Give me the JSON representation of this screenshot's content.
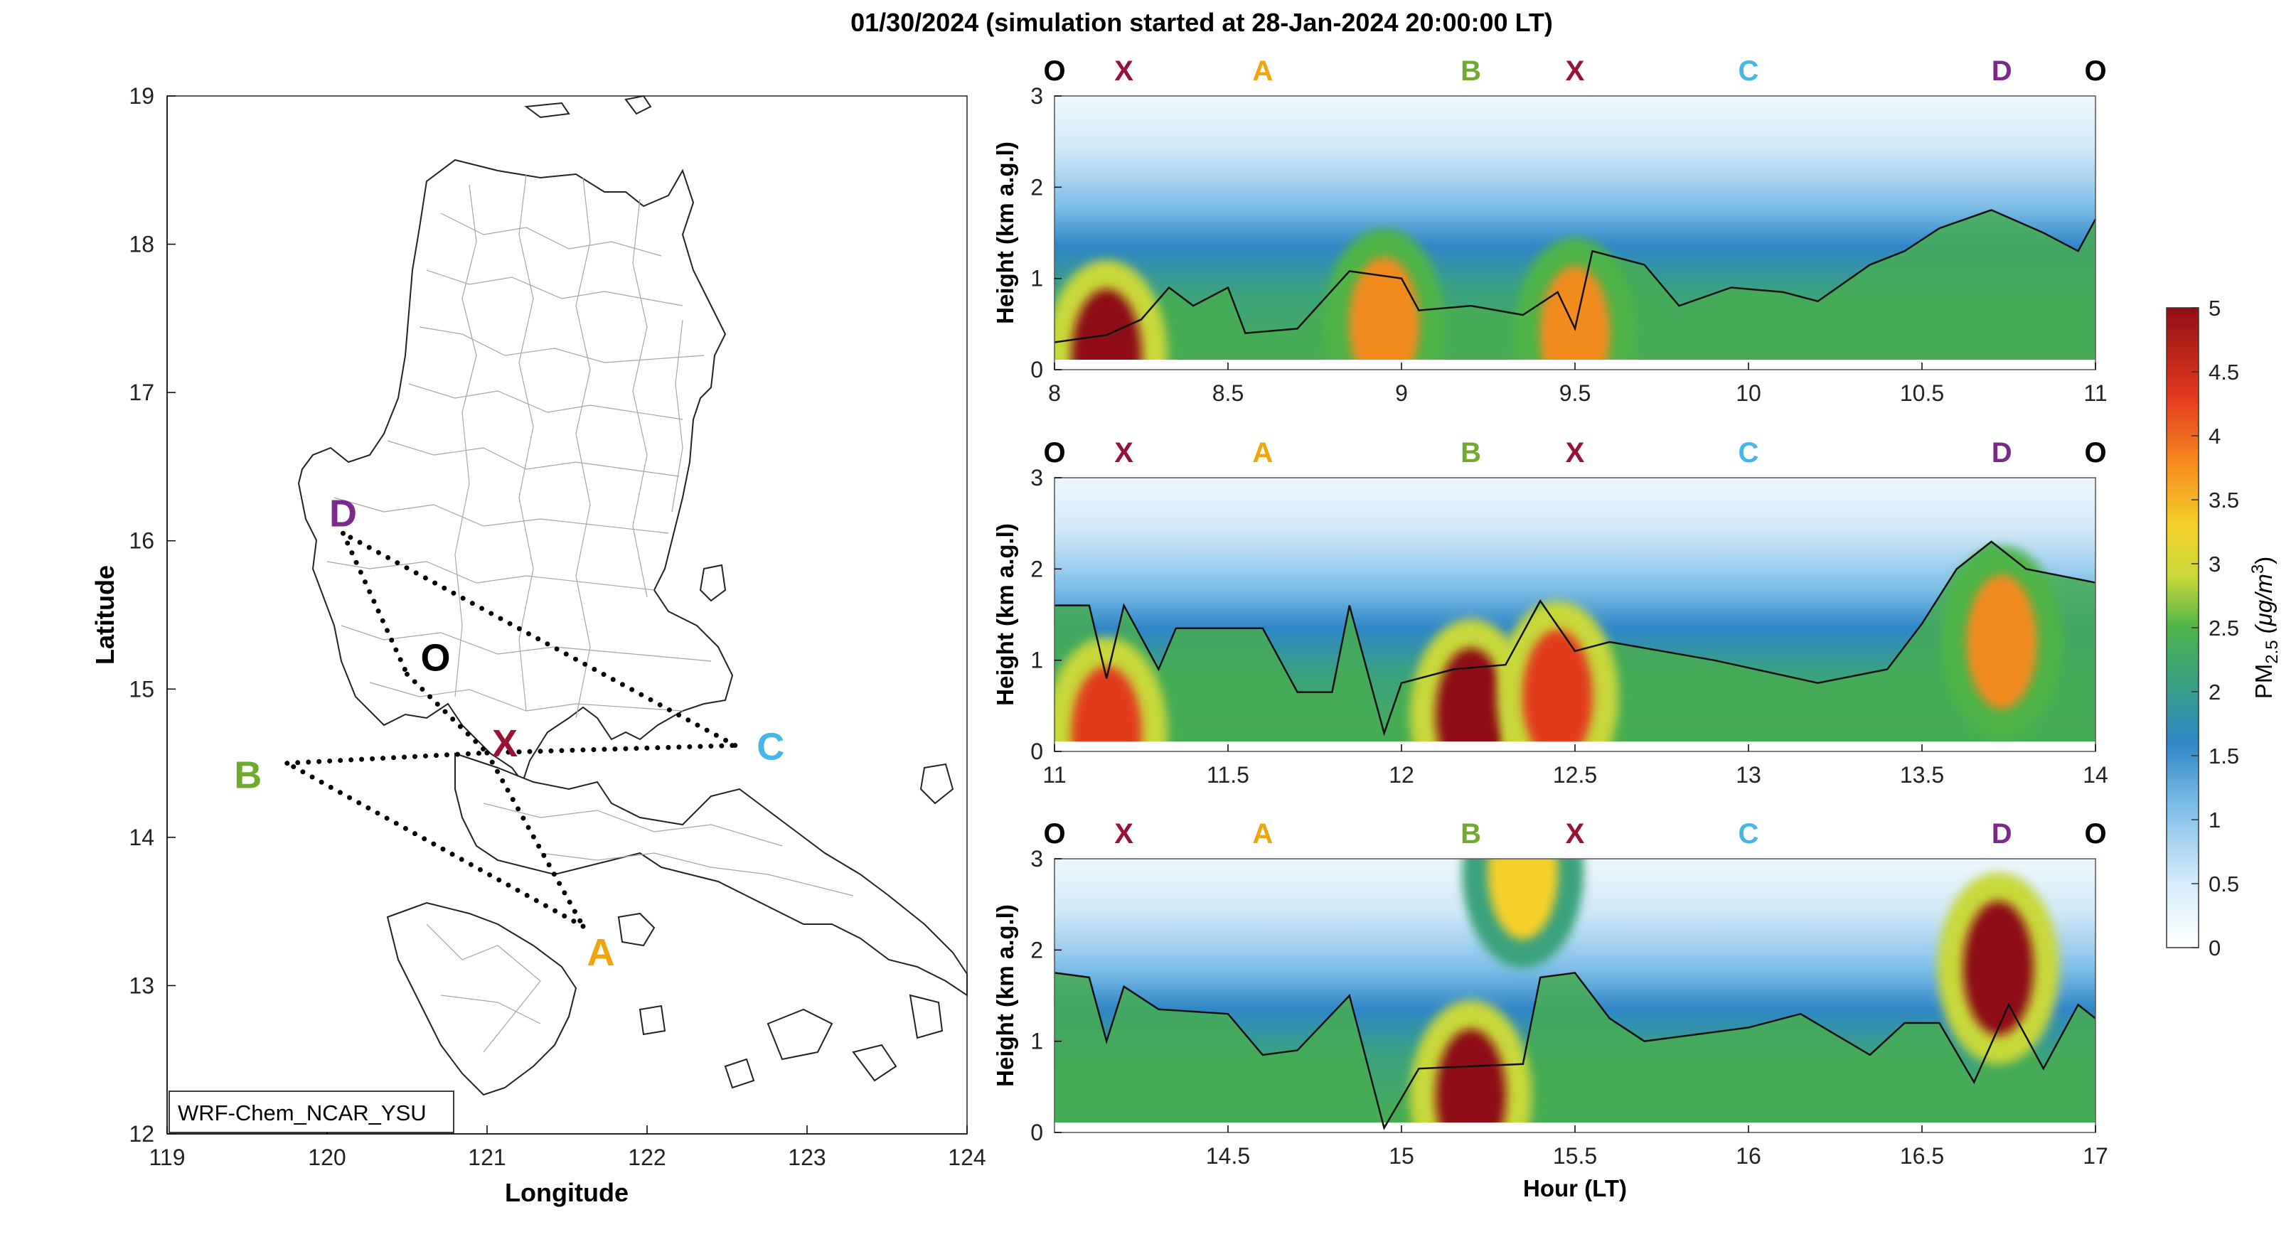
{
  "figure": {
    "title": "01/30/2024 (simulation started at 28-Jan-2024 20:00:00 LT)"
  },
  "chart_data": [
    {
      "type": "map",
      "xlabel": "Longitude",
      "ylabel": "Latitude",
      "xlim": [
        119,
        124
      ],
      "ylim": [
        12,
        19
      ],
      "xticks": [
        "119",
        "120",
        "121",
        "122",
        "123",
        "124"
      ],
      "yticks": [
        "12",
        "13",
        "14",
        "15",
        "16",
        "17",
        "18",
        "19"
      ],
      "model_label": "WRF-Chem_NCAR_YSU",
      "points": [
        {
          "label": "D",
          "lon": 120.1,
          "lat": 16.05,
          "color": "#7b2a8c"
        },
        {
          "label": "O",
          "lon": 120.5,
          "lat": 15.1,
          "color": "#000000"
        },
        {
          "label": "X",
          "lon": 121.0,
          "lat": 14.57,
          "color": "#9b1035"
        },
        {
          "label": "B",
          "lon": 119.75,
          "lat": 14.5,
          "color": "#6faa2f"
        },
        {
          "label": "C",
          "lon": 122.55,
          "lat": 14.62,
          "color": "#45b6e8"
        },
        {
          "label": "A",
          "lon": 121.6,
          "lat": 13.4,
          "color": "#f0a50a"
        }
      ],
      "flight_path": [
        [
          "D",
          "O"
        ],
        [
          "O",
          "X"
        ],
        [
          "X",
          "A"
        ],
        [
          "A",
          "B"
        ],
        [
          "B",
          "X"
        ],
        [
          "X",
          "C"
        ],
        [
          "C",
          "D"
        ]
      ]
    },
    {
      "type": "heatmap",
      "panel": "top",
      "ylabel": "Height (km a.g.l)",
      "xlim": [
        8,
        11
      ],
      "ylim": [
        0,
        3
      ],
      "xticks": [
        "8",
        "8.5",
        "9",
        "9.5",
        "10",
        "10.5",
        "11"
      ],
      "yticks": [
        "0",
        "1",
        "2",
        "3"
      ],
      "waypoints": [
        {
          "label": "O",
          "hour": 8.0
        },
        {
          "label": "X",
          "hour": 8.2
        },
        {
          "label": "A",
          "hour": 8.6
        },
        {
          "label": "B",
          "hour": 9.2
        },
        {
          "label": "X",
          "hour": 9.5
        },
        {
          "label": "C",
          "hour": 10.0
        },
        {
          "label": "D",
          "hour": 10.73
        },
        {
          "label": "O",
          "hour": 11.0
        }
      ],
      "pblh_km": [
        [
          8.0,
          0.3
        ],
        [
          8.15,
          0.38
        ],
        [
          8.25,
          0.55
        ],
        [
          8.33,
          0.9
        ],
        [
          8.4,
          0.7
        ],
        [
          8.5,
          0.9
        ],
        [
          8.55,
          0.4
        ],
        [
          8.7,
          0.45
        ],
        [
          8.85,
          1.08
        ],
        [
          9.0,
          1.0
        ],
        [
          9.05,
          0.65
        ],
        [
          9.2,
          0.7
        ],
        [
          9.35,
          0.6
        ],
        [
          9.45,
          0.85
        ],
        [
          9.5,
          0.45
        ],
        [
          9.55,
          1.3
        ],
        [
          9.7,
          1.15
        ],
        [
          9.8,
          0.7
        ],
        [
          9.95,
          0.9
        ],
        [
          10.1,
          0.85
        ],
        [
          10.2,
          0.75
        ],
        [
          10.35,
          1.15
        ],
        [
          10.45,
          1.3
        ],
        [
          10.55,
          1.55
        ],
        [
          10.7,
          1.75
        ],
        [
          10.85,
          1.5
        ],
        [
          10.95,
          1.3
        ],
        [
          11.0,
          1.65
        ]
      ],
      "pm25_hotspots": [
        {
          "hour": 8.15,
          "height_km": 0.15,
          "pm25": 5.0
        },
        {
          "hour": 8.95,
          "height_km": 0.5,
          "pm25": 4.2
        },
        {
          "hour": 9.5,
          "height_km": 0.4,
          "pm25": 4.0
        }
      ]
    },
    {
      "type": "heatmap",
      "panel": "middle",
      "ylabel": "Height (km a.g.l)",
      "xlim": [
        11,
        14
      ],
      "ylim": [
        0,
        3
      ],
      "xticks": [
        "11",
        "11.5",
        "12",
        "12.5",
        "13",
        "13.5",
        "14"
      ],
      "yticks": [
        "0",
        "1",
        "2",
        "3"
      ],
      "waypoints": [
        {
          "label": "O",
          "hour": 11.0
        },
        {
          "label": "X",
          "hour": 11.2
        },
        {
          "label": "A",
          "hour": 11.6
        },
        {
          "label": "B",
          "hour": 12.2
        },
        {
          "label": "X",
          "hour": 12.5
        },
        {
          "label": "C",
          "hour": 13.0
        },
        {
          "label": "D",
          "hour": 13.73
        },
        {
          "label": "O",
          "hour": 14.0
        }
      ],
      "pblh_km": [
        [
          11.0,
          1.6
        ],
        [
          11.1,
          1.6
        ],
        [
          11.15,
          0.8
        ],
        [
          11.2,
          1.6
        ],
        [
          11.3,
          0.9
        ],
        [
          11.35,
          1.35
        ],
        [
          11.6,
          1.35
        ],
        [
          11.7,
          0.65
        ],
        [
          11.8,
          0.65
        ],
        [
          11.85,
          1.6
        ],
        [
          11.95,
          0.2
        ],
        [
          12.0,
          0.75
        ],
        [
          12.15,
          0.9
        ],
        [
          12.3,
          0.95
        ],
        [
          12.4,
          1.65
        ],
        [
          12.5,
          1.1
        ],
        [
          12.6,
          1.2
        ],
        [
          12.9,
          1.0
        ],
        [
          13.2,
          0.75
        ],
        [
          13.4,
          0.9
        ],
        [
          13.5,
          1.4
        ],
        [
          13.6,
          2.0
        ],
        [
          13.7,
          2.3
        ],
        [
          13.8,
          2.0
        ],
        [
          14.0,
          1.85
        ]
      ],
      "pm25_hotspots": [
        {
          "hour": 11.15,
          "height_km": 0.2,
          "pm25": 4.5
        },
        {
          "hour": 12.2,
          "height_km": 0.4,
          "pm25": 5.0
        },
        {
          "hour": 12.45,
          "height_km": 0.6,
          "pm25": 4.5
        },
        {
          "hour": 13.73,
          "height_km": 1.2,
          "pm25": 4.0
        }
      ]
    },
    {
      "type": "heatmap",
      "panel": "bottom",
      "xlabel": "Hour (LT)",
      "ylabel": "Height (km a.g.l)",
      "xlim": [
        14,
        17
      ],
      "ylim": [
        0,
        3
      ],
      "xticks": [
        "14.5",
        "15",
        "15.5",
        "16",
        "16.5",
        "17"
      ],
      "yticks": [
        "0",
        "1",
        "2",
        "3"
      ],
      "waypoints": [
        {
          "label": "O",
          "hour": 14.0
        },
        {
          "label": "X",
          "hour": 14.2
        },
        {
          "label": "A",
          "hour": 14.6
        },
        {
          "label": "B",
          "hour": 15.2
        },
        {
          "label": "X",
          "hour": 15.5
        },
        {
          "label": "C",
          "hour": 16.0
        },
        {
          "label": "D",
          "hour": 16.73
        },
        {
          "label": "O",
          "hour": 17.0
        }
      ],
      "pblh_km": [
        [
          14.0,
          1.75
        ],
        [
          14.1,
          1.7
        ],
        [
          14.15,
          1.0
        ],
        [
          14.2,
          1.6
        ],
        [
          14.3,
          1.35
        ],
        [
          14.5,
          1.3
        ],
        [
          14.6,
          0.85
        ],
        [
          14.7,
          0.9
        ],
        [
          14.85,
          1.5
        ],
        [
          14.95,
          0.05
        ],
        [
          15.05,
          0.7
        ],
        [
          15.35,
          0.75
        ],
        [
          15.4,
          1.7
        ],
        [
          15.5,
          1.75
        ],
        [
          15.6,
          1.25
        ],
        [
          15.7,
          1.0
        ],
        [
          16.0,
          1.15
        ],
        [
          16.15,
          1.3
        ],
        [
          16.35,
          0.85
        ],
        [
          16.45,
          1.2
        ],
        [
          16.55,
          1.2
        ],
        [
          16.65,
          0.55
        ],
        [
          16.75,
          1.4
        ],
        [
          16.85,
          0.7
        ],
        [
          16.95,
          1.4
        ],
        [
          17.0,
          1.25
        ]
      ],
      "pm25_hotspots": [
        {
          "hour": 15.2,
          "height_km": 0.4,
          "pm25": 5.0
        },
        {
          "hour": 15.35,
          "height_km": 2.85,
          "pm25": 3.5
        },
        {
          "hour": 16.72,
          "height_km": 1.8,
          "pm25": 5.0
        }
      ]
    },
    {
      "type": "colorbar",
      "label_main": "PM",
      "label_sub": "2.5",
      "label_unit": " (μg/m",
      "label_sup": "3",
      "label_close": ")",
      "range": [
        0,
        5
      ],
      "ticks": [
        "0",
        "0.5",
        "1",
        "1.5",
        "2",
        "2.5",
        "3",
        "3.5",
        "4",
        "4.5",
        "5"
      ]
    }
  ]
}
